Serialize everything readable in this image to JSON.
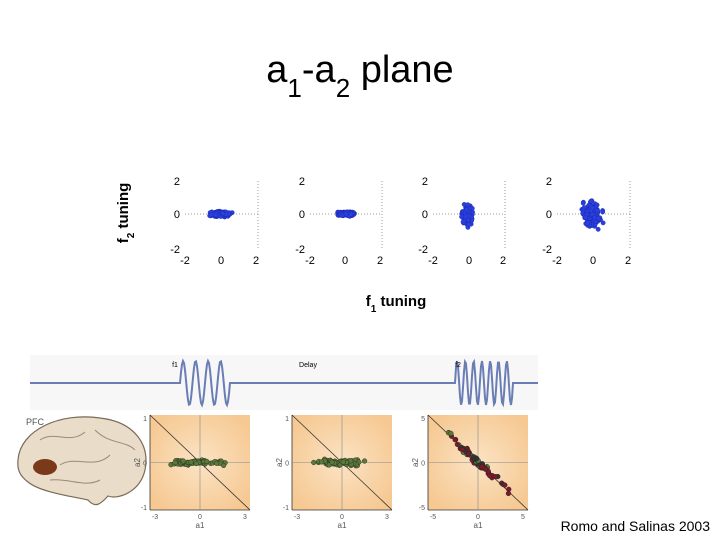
{
  "title": [
    {
      "text": "a"
    },
    {
      "text": "1",
      "sub": true
    },
    {
      "text": "-a"
    },
    {
      "text": "2",
      "sub": true
    },
    {
      "text": " plane"
    }
  ],
  "y_label": [
    {
      "text": "f"
    },
    {
      "text": "2",
      "sub": true
    },
    {
      "text": " tuning"
    }
  ],
  "x_label": [
    {
      "text": "f"
    },
    {
      "text": "1",
      "sub": true
    },
    {
      "text": " tuning"
    }
  ],
  "top_panels": [
    {
      "yticks": [
        "2",
        "0",
        "-2"
      ],
      "xticks": [
        "-2",
        "0",
        "2"
      ]
    },
    {
      "yticks": [
        "2",
        "0",
        "-2"
      ],
      "xticks": [
        "-2",
        "0",
        "2"
      ]
    },
    {
      "yticks": [
        "2",
        "0",
        "-2"
      ],
      "xticks": [
        "-2",
        "0",
        "2"
      ]
    },
    {
      "yticks": [
        "2",
        "0",
        "-2"
      ],
      "xticks": [
        "-2",
        "0",
        "2"
      ]
    }
  ],
  "stimulus": {
    "labels": [
      "f1",
      "Delay",
      "f2"
    ]
  },
  "brain_label": "PFC",
  "bottom_panels": [
    {
      "yticks": [
        "1",
        "0",
        "-1"
      ],
      "xticks": [
        "-3",
        "0",
        "3"
      ],
      "x_label": "a1",
      "y_label": "a2"
    },
    {
      "yticks": [
        "1",
        "0",
        "-1"
      ],
      "xticks": [
        "-3",
        "0",
        "3"
      ],
      "x_label": "a1",
      "y_label": "a2"
    },
    {
      "yticks": [
        "5",
        "0",
        "-5"
      ],
      "xticks": [
        "-5",
        "0",
        "5"
      ],
      "x_label": "a1",
      "y_label": "a2"
    }
  ],
  "citation": "Romo and Salinas 2003"
}
